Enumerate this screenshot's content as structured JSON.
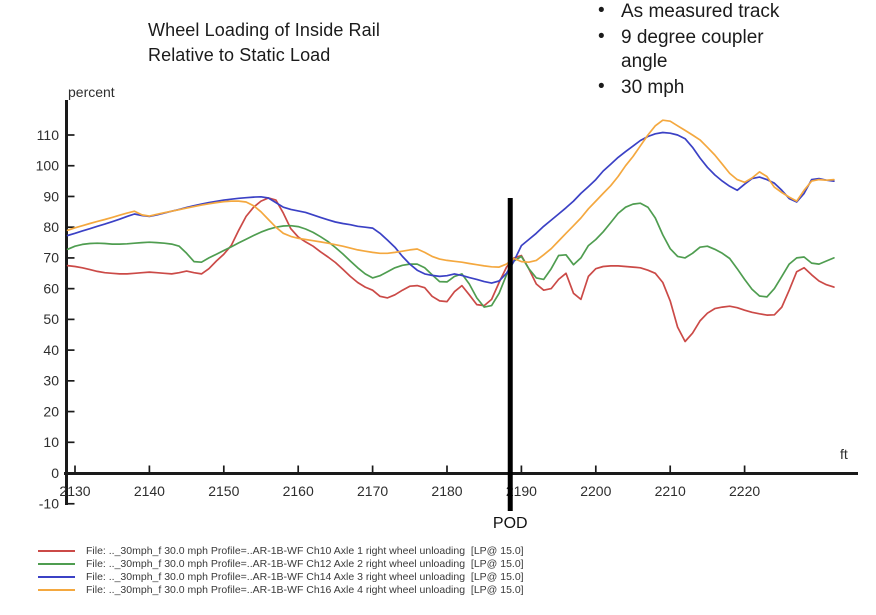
{
  "title": {
    "lines": [
      "Wheel Loading of Inside Rail",
      "Relative to Static Load"
    ]
  },
  "notes": {
    "items": [
      "As measured track",
      "9 degree coupler angle",
      "30 mph"
    ]
  },
  "chart_data": {
    "type": "line",
    "title": "Wheel Loading of Inside Rail Relative to Static Load",
    "ylabel": "percent",
    "xlabel": "ft",
    "grid": false,
    "legend_position": "bottom-left",
    "ylim": [
      -10,
      117
    ],
    "xlim": [
      2128.5,
      2235.5
    ],
    "yticks": [
      -10,
      0,
      10,
      20,
      30,
      40,
      50,
      60,
      70,
      80,
      90,
      100,
      110
    ],
    "xticks": [
      2130,
      2140,
      2150,
      2160,
      2170,
      2180,
      2190,
      2200,
      2210,
      2220
    ],
    "pod_marker": {
      "label": "POD",
      "x": 2188.5
    },
    "x_start": 2129,
    "x_step": 1,
    "series": [
      {
        "name": "Ch10 Axle 1 right wheel unloading",
        "legend_label": "File: .._30mph_f 30.0 mph Profile=..AR-1B-WF Ch10 Axle 1 right wheel unloading  [LP@ 15.0]",
        "color": "#cb4a47",
        "values": [
          67.5,
          67.2,
          66.8,
          66.2,
          65.6,
          65.2,
          65.0,
          64.8,
          64.8,
          65.0,
          65.2,
          65.4,
          65.2,
          65.0,
          64.8,
          65.2,
          65.7,
          65.2,
          64.8,
          66.5,
          69.0,
          71.2,
          74.0,
          79.0,
          83.5,
          86.5,
          88.5,
          89.5,
          88.8,
          84.6,
          79.5,
          76.8,
          75.2,
          73.8,
          72.0,
          70.3,
          68.5,
          66.3,
          64.0,
          62.0,
          60.5,
          59.5,
          57.5,
          57.0,
          58.0,
          59.5,
          60.8,
          61.0,
          60.3,
          57.5,
          56.0,
          55.8,
          59.0,
          61.0,
          58.0,
          54.8,
          54.5,
          56.5,
          62.0,
          67.0,
          70.0,
          70.8,
          66.5,
          61.5,
          59.5,
          60.0,
          63.0,
          65.0,
          58.5,
          56.5,
          64.0,
          66.5,
          67.2,
          67.4,
          67.4,
          67.2,
          67.0,
          66.8,
          66.0,
          65.0,
          62.0,
          56.0,
          47.5,
          42.8,
          45.5,
          49.5,
          52.0,
          53.5,
          54.0,
          54.3,
          53.8,
          53.0,
          52.3,
          51.8,
          51.4,
          51.5,
          54.0,
          59.5,
          65.5,
          66.8,
          64.5,
          62.5,
          61.3,
          60.5
        ]
      },
      {
        "name": "Ch12 Axle 2 right wheel unloading",
        "legend_label": "File: .._30mph_f 30.0 mph Profile=..AR-1B-WF Ch12 Axle 2 right wheel unloading  [LP@ 15.0]",
        "color": "#4f9d50",
        "values": [
          72.8,
          73.8,
          74.4,
          74.7,
          74.8,
          74.7,
          74.5,
          74.5,
          74.6,
          74.8,
          75.0,
          75.1,
          75.0,
          74.8,
          74.5,
          73.8,
          71.5,
          68.8,
          68.6,
          70.0,
          71.2,
          72.4,
          73.6,
          74.9,
          76.1,
          77.3,
          78.4,
          79.3,
          80.0,
          80.4,
          80.5,
          80.2,
          79.4,
          78.3,
          76.9,
          75.3,
          73.4,
          71.3,
          69.0,
          66.8,
          64.8,
          63.5,
          64.2,
          65.5,
          66.8,
          67.6,
          68.0,
          68.0,
          66.8,
          64.5,
          62.3,
          62.2,
          64.0,
          64.8,
          61.5,
          57.0,
          54.0,
          54.5,
          58.5,
          64.5,
          69.0,
          70.5,
          66.5,
          63.5,
          63.0,
          66.5,
          70.8,
          71.0,
          67.8,
          70.0,
          74.0,
          76.0,
          78.5,
          81.5,
          84.5,
          86.5,
          87.5,
          87.8,
          86.5,
          83.0,
          77.5,
          73.0,
          70.5,
          70.0,
          71.5,
          73.5,
          73.8,
          72.8,
          71.5,
          69.8,
          66.5,
          63.0,
          59.8,
          57.6,
          57.3,
          60.0,
          64.0,
          68.0,
          70.0,
          70.3,
          68.3,
          68.0,
          69.0,
          70.0
        ]
      },
      {
        "name": "Ch14 Axle 3 right wheel unloading",
        "legend_label": "File: .._30mph_f 30.0 mph Profile=..AR-1B-WF Ch14 Axle 3 right wheel unloading  [LP@ 15.0]",
        "color": "#3b41c5",
        "values": [
          77.3,
          78.0,
          78.8,
          79.5,
          80.3,
          81.0,
          81.8,
          82.6,
          83.5,
          84.3,
          83.8,
          83.5,
          84.0,
          84.6,
          85.2,
          85.8,
          86.4,
          87.0,
          87.5,
          88.0,
          88.4,
          88.8,
          89.1,
          89.4,
          89.6,
          89.8,
          89.9,
          89.5,
          88.0,
          86.5,
          85.8,
          85.3,
          84.8,
          84.0,
          83.2,
          82.4,
          81.7,
          81.2,
          80.8,
          80.3,
          80.0,
          79.7,
          78.0,
          75.8,
          73.5,
          70.5,
          68.0,
          66.0,
          64.8,
          64.3,
          64.0,
          64.2,
          64.8,
          64.3,
          63.6,
          63.0,
          62.3,
          61.8,
          62.5,
          65.0,
          69.0,
          74.0,
          76.0,
          78.0,
          80.3,
          82.3,
          84.3,
          86.3,
          88.5,
          91.0,
          93.2,
          95.5,
          98.3,
          100.5,
          102.7,
          104.6,
          106.4,
          108.2,
          109.5,
          110.4,
          110.8,
          110.6,
          110.0,
          108.8,
          106.0,
          102.5,
          99.5,
          97.0,
          95.0,
          93.3,
          92.0,
          94.0,
          95.8,
          96.3,
          95.5,
          94.3,
          92.0,
          89.3,
          88.2,
          91.0,
          95.5,
          95.8,
          95.3,
          95.0
        ]
      },
      {
        "name": "Ch16 Axle 4 right wheel unloading",
        "legend_label": "File: .._30mph_f 30.0 mph Profile=..AR-1B-WF Ch16 Axle 4 right wheel unloading  [LP@ 15.0]",
        "color": "#f4a83f",
        "values": [
          79.0,
          79.8,
          80.5,
          81.2,
          81.9,
          82.5,
          83.2,
          83.9,
          84.6,
          85.2,
          84.0,
          83.6,
          84.2,
          84.7,
          85.2,
          85.7,
          86.2,
          86.7,
          87.2,
          87.6,
          88.0,
          88.3,
          88.5,
          88.5,
          88.2,
          87.0,
          85.0,
          82.5,
          80.0,
          78.0,
          77.0,
          76.4,
          76.0,
          75.6,
          75.2,
          74.8,
          74.3,
          73.8,
          73.2,
          72.6,
          72.2,
          71.8,
          71.5,
          71.5,
          71.8,
          72.2,
          72.6,
          72.9,
          71.8,
          70.5,
          69.6,
          69.2,
          68.9,
          68.6,
          68.2,
          67.8,
          67.4,
          67.1,
          67.0,
          68.0,
          69.8,
          68.8,
          68.6,
          69.2,
          71.0,
          73.0,
          75.5,
          78.0,
          80.5,
          83.0,
          86.0,
          88.5,
          91.0,
          93.5,
          96.5,
          100.0,
          103.0,
          106.5,
          110.0,
          113.0,
          114.8,
          114.5,
          113.0,
          111.5,
          110.0,
          108.4,
          106.0,
          103.5,
          100.5,
          97.5,
          95.5,
          94.6,
          96.0,
          98.0,
          96.5,
          93.0,
          91.3,
          89.8,
          88.5,
          92.0,
          95.0,
          95.5,
          95.3,
          95.5
        ]
      }
    ],
    "style": {
      "axis_color": "#1a1a1a",
      "tick_label_color": "#2e2e2e",
      "pod_line_color": "#000000"
    }
  }
}
